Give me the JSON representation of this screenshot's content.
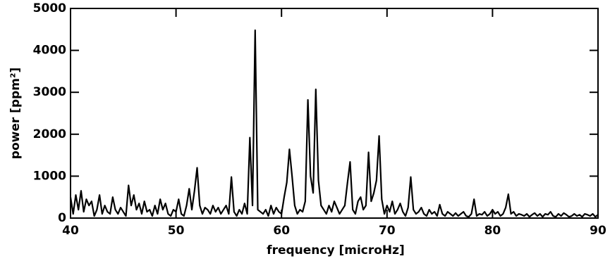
{
  "chart_data": {
    "type": "line",
    "x_label": "frequency [microHz]",
    "y_label": "power [ppm²]",
    "color": "#000000",
    "xlim": [
      40,
      90
    ],
    "xticks": [
      40,
      50,
      60,
      70,
      80,
      90
    ],
    "ylim": [
      0,
      5000
    ],
    "yticks": [
      0,
      1000,
      2000,
      3000,
      4000,
      5000
    ],
    "x": [
      40,
      40.25,
      40.5,
      40.75,
      41,
      41.25,
      41.5,
      41.75,
      42,
      42.25,
      42.5,
      42.75,
      43,
      43.25,
      43.5,
      43.75,
      44,
      44.25,
      44.5,
      44.75,
      45,
      45.25,
      45.5,
      45.75,
      46,
      46.25,
      46.5,
      46.75,
      47,
      47.25,
      47.5,
      47.75,
      48,
      48.25,
      48.5,
      48.75,
      49,
      49.25,
      49.5,
      49.75,
      50,
      50.25,
      50.5,
      50.75,
      51,
      51.25,
      51.5,
      51.75,
      52,
      52.25,
      52.5,
      52.75,
      53,
      53.25,
      53.5,
      53.75,
      54,
      54.25,
      54.5,
      54.75,
      55,
      55.25,
      55.5,
      55.75,
      56,
      56.25,
      56.5,
      56.75,
      57,
      57.25,
      57.5,
      57.75,
      58,
      58.25,
      58.5,
      58.75,
      59,
      59.25,
      59.5,
      59.75,
      60,
      60.25,
      60.5,
      60.75,
      61,
      61.25,
      61.5,
      61.75,
      62,
      62.25,
      62.5,
      62.75,
      63,
      63.25,
      63.5,
      63.75,
      64,
      64.25,
      64.5,
      64.75,
      65,
      65.25,
      65.5,
      65.75,
      66,
      66.25,
      66.5,
      66.75,
      67,
      67.25,
      67.5,
      67.75,
      68,
      68.25,
      68.5,
      68.75,
      69,
      69.25,
      69.5,
      69.75,
      70,
      70.25,
      70.5,
      70.75,
      71,
      71.25,
      71.5,
      71.75,
      72,
      72.25,
      72.5,
      72.75,
      73,
      73.25,
      73.5,
      73.75,
      74,
      74.25,
      74.5,
      74.75,
      75,
      75.25,
      75.5,
      75.75,
      76,
      76.25,
      76.5,
      76.75,
      77,
      77.25,
      77.5,
      77.75,
      78,
      78.25,
      78.5,
      78.75,
      79,
      79.25,
      79.5,
      79.75,
      80,
      80.25,
      80.5,
      80.75,
      81,
      81.25,
      81.5,
      81.75,
      82,
      82.25,
      82.5,
      82.75,
      83,
      83.25,
      83.5,
      83.75,
      84,
      84.25,
      84.5,
      84.75,
      85,
      85.25,
      85.5,
      85.75,
      86,
      86.25,
      86.5,
      86.75,
      87,
      87.25,
      87.5,
      87.75,
      88,
      88.25,
      88.5,
      88.75,
      89,
      89.25,
      89.5,
      89.75,
      90
    ],
    "values": [
      500,
      100,
      550,
      200,
      650,
      150,
      450,
      300,
      400,
      50,
      200,
      550,
      100,
      300,
      150,
      100,
      500,
      200,
      100,
      250,
      150,
      50,
      780,
      300,
      550,
      200,
      350,
      100,
      400,
      150,
      200,
      50,
      300,
      100,
      450,
      200,
      350,
      100,
      50,
      200,
      150,
      450,
      100,
      50,
      300,
      700,
      200,
      650,
      1200,
      300,
      100,
      250,
      200,
      100,
      300,
      150,
      250,
      100,
      200,
      300,
      100,
      980,
      150,
      50,
      200,
      100,
      350,
      100,
      1920,
      300,
      4480,
      200,
      150,
      100,
      200,
      50,
      300,
      100,
      250,
      150,
      100,
      500,
      850,
      1640,
      1000,
      300,
      100,
      200,
      150,
      400,
      2820,
      1000,
      600,
      3070,
      900,
      300,
      200,
      100,
      300,
      150,
      400,
      250,
      100,
      200,
      300,
      840,
      1340,
      200,
      100,
      400,
      500,
      200,
      300,
      1570,
      400,
      600,
      900,
      1960,
      450,
      100,
      300,
      150,
      400,
      100,
      200,
      350,
      150,
      50,
      250,
      980,
      200,
      100,
      150,
      250,
      100,
      50,
      200,
      100,
      150,
      50,
      320,
      100,
      50,
      150,
      100,
      50,
      120,
      50,
      100,
      150,
      50,
      30,
      100,
      450,
      50,
      100,
      80,
      150,
      50,
      100,
      200,
      100,
      150,
      50,
      100,
      250,
      570,
      100,
      150,
      50,
      100,
      80,
      50,
      100,
      30,
      80,
      120,
      50,
      100,
      30,
      100,
      80,
      150,
      50,
      30,
      100,
      50,
      120,
      80,
      30,
      50,
      100,
      50,
      80,
      30,
      100,
      80,
      50,
      100,
      30,
      80
    ]
  }
}
